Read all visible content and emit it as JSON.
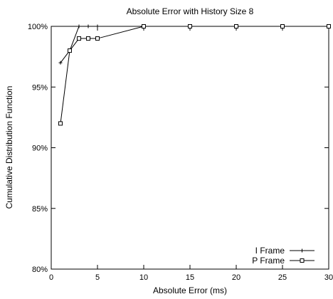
{
  "chart_data": {
    "type": "line",
    "title": "Absolute Error with History Size 8",
    "xlabel": "Absolute Error (ms)",
    "ylabel": "Cumulative Distribution Function",
    "xlim": [
      0,
      30
    ],
    "ylim": [
      80,
      100
    ],
    "x_ticks": [
      0,
      5,
      10,
      15,
      20,
      25,
      30
    ],
    "y_ticks": [
      80,
      85,
      90,
      95,
      100
    ],
    "y_tick_labels": [
      "80%",
      "85%",
      "90%",
      "95%",
      "100%"
    ],
    "grid": false,
    "legend_position": "bottom-right",
    "series": [
      {
        "name": "I Frame",
        "marker": "plus",
        "color": "#000000",
        "x": [
          1,
          2,
          3,
          4,
          5,
          10,
          15,
          20,
          25,
          30
        ],
        "y": [
          97,
          98,
          100,
          100,
          100,
          100,
          100,
          100,
          100,
          100
        ]
      },
      {
        "name": "P Frame",
        "marker": "square",
        "color": "#000000",
        "x": [
          1,
          2,
          3,
          4,
          5,
          10,
          15,
          20,
          25,
          30
        ],
        "y": [
          92,
          98,
          99,
          99,
          99,
          100,
          100,
          100,
          100,
          100
        ]
      }
    ]
  }
}
